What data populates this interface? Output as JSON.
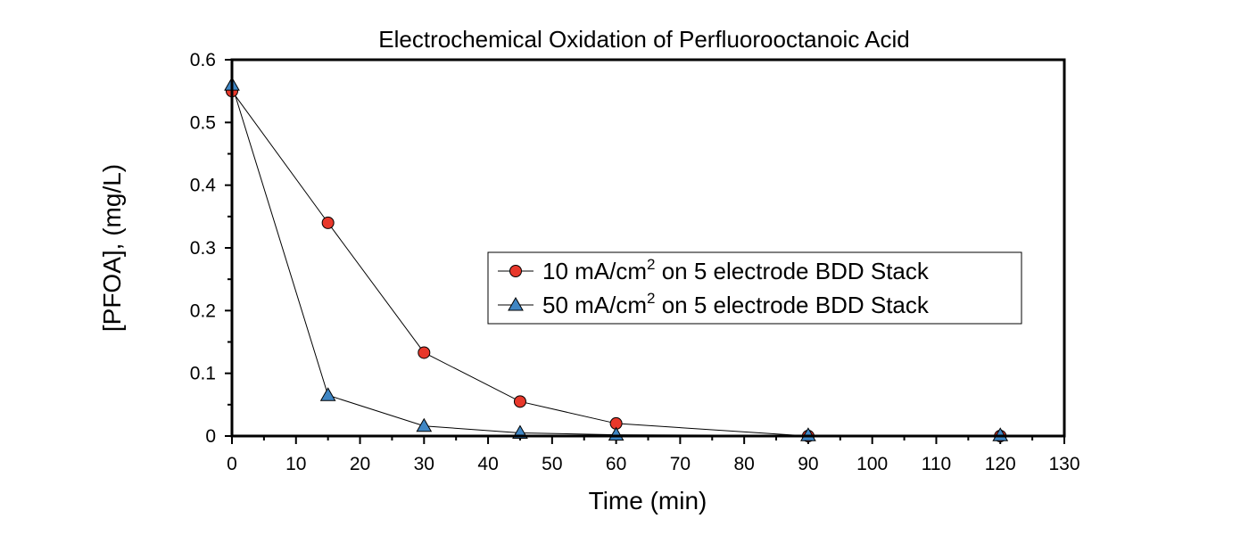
{
  "chart_data": {
    "type": "scatter",
    "title": "Electrochemical Oxidation of Perfluorooctanoic Acid",
    "xlabel": "Time (min)",
    "ylabel": "[PFOA], (mg/L)",
    "xlim": [
      0,
      130
    ],
    "ylim": [
      0,
      0.6
    ],
    "xticks": [
      0,
      10,
      20,
      30,
      40,
      50,
      60,
      70,
      80,
      90,
      100,
      110,
      120,
      130
    ],
    "xtick_labels": [
      "0",
      "10",
      "20",
      "30",
      "40",
      "50",
      "60",
      "70",
      "80",
      "90",
      "100",
      "110",
      "120",
      "130"
    ],
    "yticks": [
      0,
      0.1,
      0.2,
      0.3,
      0.4,
      0.5,
      0.6
    ],
    "ytick_labels": [
      "0",
      "0.1",
      "0.2",
      "0.3",
      "0.4",
      "0.5",
      "0.6"
    ],
    "grid": false,
    "legend_position": "center-right",
    "series": [
      {
        "name_prefix": "10 mA/cm",
        "name_sup": "2",
        "name_suffix": " on 5 electrode BDD Stack",
        "marker": "circle",
        "color": "#e8382b",
        "x": [
          0,
          15,
          30,
          45,
          60,
          90,
          120
        ],
        "y": [
          0.55,
          0.34,
          0.133,
          0.055,
          0.02,
          0.0,
          0.0
        ]
      },
      {
        "name_prefix": "50 mA/cm",
        "name_sup": "2",
        "name_suffix": " on 5 electrode BDD Stack",
        "marker": "triangle",
        "color": "#3f86c4",
        "x": [
          0,
          15,
          30,
          45,
          60,
          90,
          120
        ],
        "y": [
          0.56,
          0.065,
          0.016,
          0.005,
          0.002,
          0.001,
          0.001
        ]
      }
    ]
  }
}
